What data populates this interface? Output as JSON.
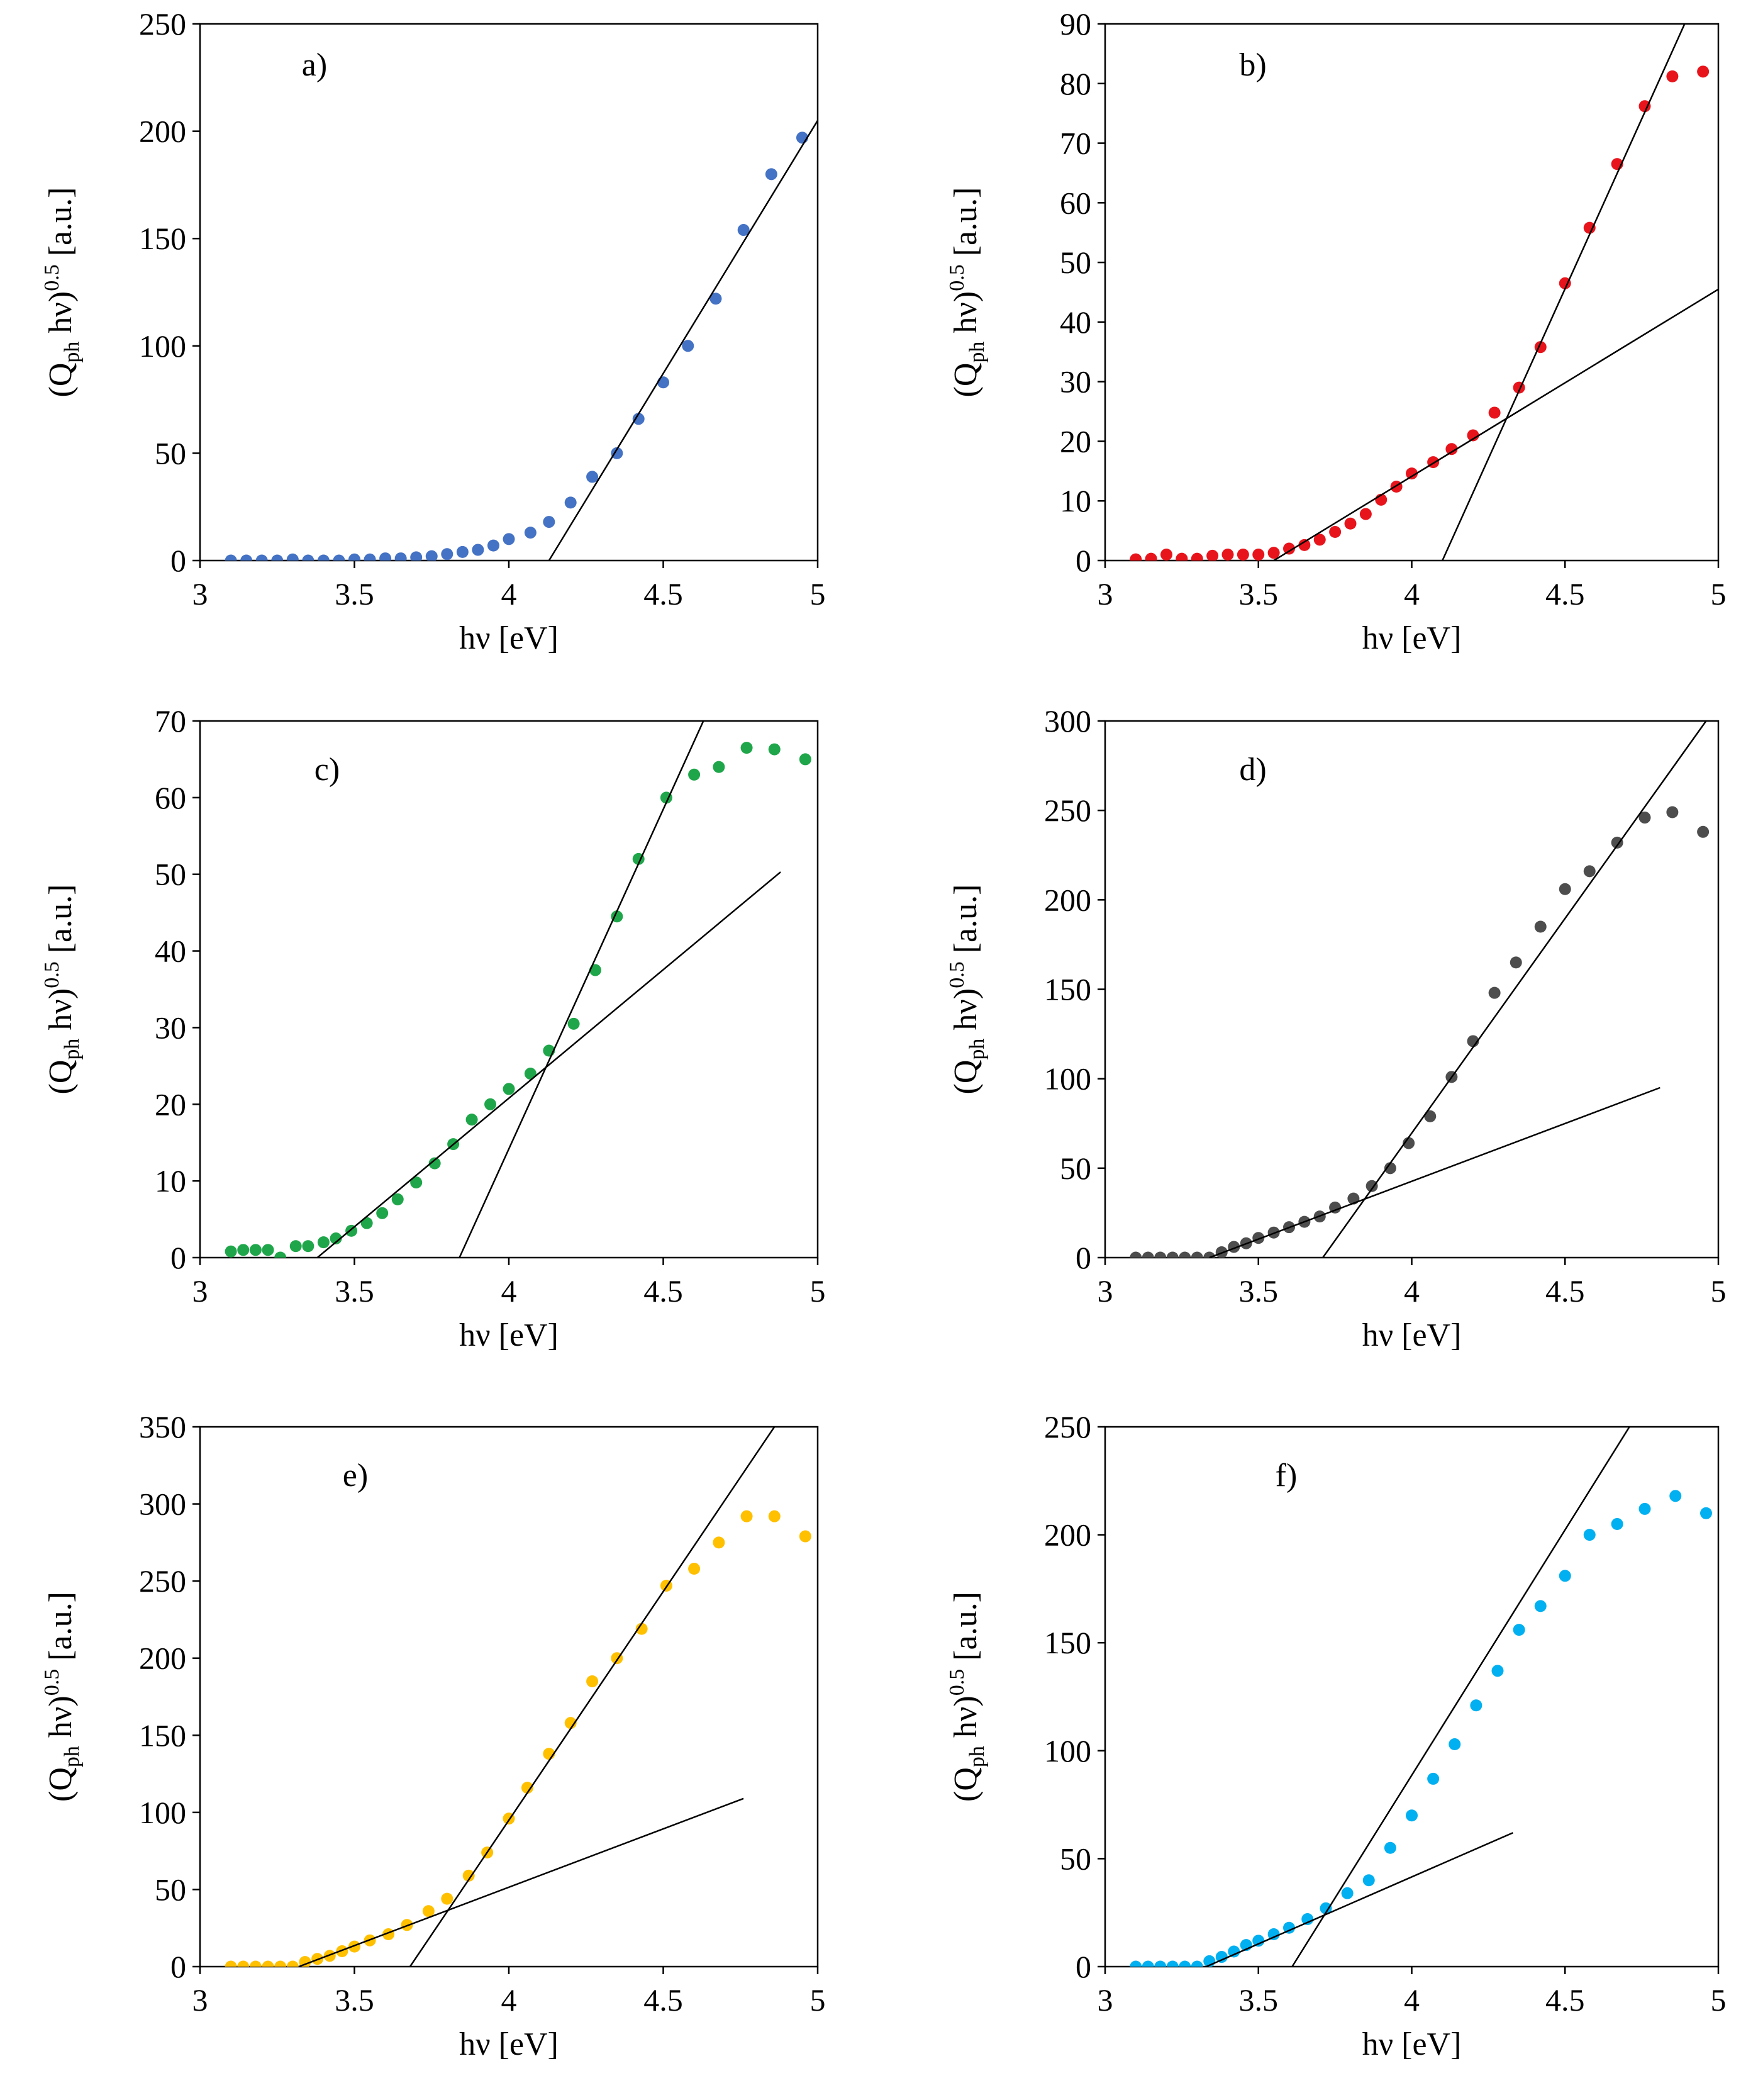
{
  "chart_data": [
    {
      "type": "scatter",
      "panel_label": "a)",
      "color": "#4472C4",
      "xlabel": "hν [eV]",
      "ylabel": "(Qph hν)0.5 [a.u.]",
      "ylabel_parts": {
        "pre": "(Q",
        "sub": "ph",
        "mid": " hν)",
        "sup": "0.5",
        "post": " [a.u.]"
      },
      "xlim": [
        3,
        5
      ],
      "ylim": [
        0,
        250
      ],
      "xticks": [
        "3",
        "3.5",
        "4",
        "4.5",
        "5"
      ],
      "yticks": [
        "0",
        "50",
        "100",
        "150",
        "200",
        "250"
      ],
      "x": [
        3.1,
        3.15,
        3.2,
        3.25,
        3.3,
        3.35,
        3.4,
        3.45,
        3.5,
        3.55,
        3.6,
        3.65,
        3.7,
        3.75,
        3.8,
        3.85,
        3.9,
        3.95,
        4.0,
        4.07,
        4.13,
        4.2,
        4.27,
        4.35,
        4.42,
        4.5,
        4.58,
        4.67,
        4.76,
        4.85,
        4.95
      ],
      "y": [
        0,
        0,
        0,
        0,
        0.5,
        0,
        0,
        0,
        0.5,
        0.5,
        1,
        1,
        1.5,
        2,
        3,
        4,
        5,
        7,
        10,
        13,
        18,
        27,
        39,
        50,
        66,
        83,
        100,
        122,
        154,
        180,
        197
      ],
      "fit_lines": [
        {
          "x": [
            4.13,
            5.0
          ],
          "y": [
            0,
            205
          ]
        }
      ]
    },
    {
      "type": "scatter",
      "panel_label": "b)",
      "color": "#E8141C",
      "xlabel": "hν [eV]",
      "ylabel": "(Qph hν)0.5 [a.u.]",
      "ylabel_parts": {
        "pre": "(Q",
        "sub": "ph",
        "mid": " hν)",
        "sup": "0.5",
        "post": " [a.u.]"
      },
      "xlim": [
        3,
        5
      ],
      "ylim": [
        0,
        90
      ],
      "xticks": [
        "3",
        "3.5",
        "4",
        "4.5",
        "5"
      ],
      "yticks": [
        "0",
        "10",
        "20",
        "30",
        "40",
        "50",
        "60",
        "70",
        "80",
        "90"
      ],
      "x": [
        3.1,
        3.15,
        3.2,
        3.25,
        3.3,
        3.35,
        3.4,
        3.45,
        3.5,
        3.55,
        3.6,
        3.65,
        3.7,
        3.75,
        3.8,
        3.85,
        3.9,
        3.95,
        4.0,
        4.07,
        4.13,
        4.2,
        4.27,
        4.35,
        4.42,
        4.5,
        4.58,
        4.67,
        4.76,
        4.85,
        4.95
      ],
      "y": [
        0.2,
        0.3,
        1,
        0.3,
        0.3,
        0.8,
        1,
        1,
        1,
        1.3,
        2,
        2.6,
        3.5,
        4.8,
        6.2,
        7.8,
        10.2,
        12.4,
        14.6,
        16.5,
        18.7,
        21,
        24.8,
        29,
        35.8,
        46.5,
        55.8,
        66.5,
        76.2,
        81.2,
        82
      ],
      "fit_lines": [
        {
          "x": [
            3.55,
            5.0
          ],
          "y": [
            0,
            45.5
          ]
        },
        {
          "x": [
            4.1,
            4.89
          ],
          "y": [
            0,
            90
          ]
        }
      ]
    },
    {
      "type": "scatter",
      "panel_label": "c)",
      "color": "#1FA64A",
      "xlabel": "hν [eV]",
      "ylabel": "(Qph hν)0.5 [a.u.]",
      "ylabel_parts": {
        "pre": "(Q",
        "sub": "ph",
        "mid": " hν)",
        "sup": "0.5",
        "post": " [a.u.]"
      },
      "xlim": [
        3,
        5
      ],
      "ylim": [
        0,
        70
      ],
      "xticks": [
        "3",
        "3.5",
        "4",
        "4.5",
        "5"
      ],
      "yticks": [
        "0",
        "10",
        "20",
        "30",
        "40",
        "50",
        "60",
        "70"
      ],
      "x": [
        3.1,
        3.14,
        3.18,
        3.22,
        3.26,
        3.31,
        3.35,
        3.4,
        3.44,
        3.49,
        3.54,
        3.59,
        3.64,
        3.7,
        3.76,
        3.82,
        3.88,
        3.94,
        4.0,
        4.07,
        4.13,
        4.21,
        4.28,
        4.35,
        4.42,
        4.51,
        4.6,
        4.68,
        4.77,
        4.86,
        4.96
      ],
      "y": [
        0.8,
        1,
        1,
        1,
        0,
        1.5,
        1.5,
        2,
        2.5,
        3.5,
        4.5,
        5.8,
        7.6,
        9.8,
        12.3,
        14.8,
        18,
        20,
        22,
        24,
        27,
        30.5,
        37.5,
        44.5,
        52,
        60,
        63,
        64,
        66.5,
        66.3,
        65
      ],
      "fit_lines": [
        {
          "x": [
            3.38,
            4.88
          ],
          "y": [
            0,
            50.3
          ]
        },
        {
          "x": [
            3.84,
            4.63
          ],
          "y": [
            0,
            70
          ]
        }
      ]
    },
    {
      "type": "scatter",
      "panel_label": "d)",
      "color": "#4D4D4D",
      "xlabel": "hν [eV]",
      "ylabel": "(Qph hν)0.5 [a.u.]",
      "ylabel_parts": {
        "pre": "(Q",
        "sub": "ph",
        "mid": " hν)",
        "sup": "0.5",
        "post": " [a.u.]"
      },
      "xlim": [
        3,
        5
      ],
      "ylim": [
        0,
        300
      ],
      "xticks": [
        "3",
        "3.5",
        "4",
        "4.5",
        "5"
      ],
      "yticks": [
        "0",
        "50",
        "100",
        "150",
        "200",
        "250",
        "300"
      ],
      "x": [
        3.1,
        3.14,
        3.18,
        3.22,
        3.26,
        3.3,
        3.34,
        3.38,
        3.42,
        3.46,
        3.5,
        3.55,
        3.6,
        3.65,
        3.7,
        3.75,
        3.81,
        3.87,
        3.93,
        3.99,
        4.06,
        4.13,
        4.2,
        4.27,
        4.34,
        4.42,
        4.5,
        4.58,
        4.67,
        4.76,
        4.85,
        4.95
      ],
      "y": [
        0,
        0,
        0,
        0,
        0,
        0,
        0,
        3,
        6,
        8,
        11,
        14,
        17,
        20,
        23,
        28,
        33,
        40,
        50,
        64,
        79,
        101,
        121,
        148,
        165,
        185,
        206,
        216,
        232,
        246,
        249,
        238
      ],
      "fit_lines": [
        {
          "x": [
            3.34,
            4.81
          ],
          "y": [
            0,
            95
          ]
        },
        {
          "x": [
            3.71,
            4.96
          ],
          "y": [
            0,
            300
          ]
        }
      ]
    },
    {
      "type": "scatter",
      "panel_label": "e)",
      "color": "#FFC000",
      "xlabel": "hν [eV]",
      "ylabel": "(Qph hν)0.5 [a.u.]",
      "ylabel_parts": {
        "pre": "(Q",
        "sub": "ph",
        "mid": " hν)",
        "sup": "0.5",
        "post": " [a.u.]"
      },
      "xlim": [
        3,
        5
      ],
      "ylim": [
        0,
        350
      ],
      "xticks": [
        "3",
        "3.5",
        "4",
        "4.5",
        "5"
      ],
      "yticks": [
        "0",
        "50",
        "100",
        "150",
        "200",
        "250",
        "300",
        "350"
      ],
      "x": [
        3.1,
        3.14,
        3.18,
        3.22,
        3.26,
        3.3,
        3.34,
        3.38,
        3.42,
        3.46,
        3.5,
        3.55,
        3.61,
        3.67,
        3.74,
        3.8,
        3.87,
        3.93,
        4.0,
        4.06,
        4.13,
        4.2,
        4.27,
        4.35,
        4.43,
        4.51,
        4.6,
        4.68,
        4.77,
        4.86,
        4.96
      ],
      "y": [
        0,
        0,
        0,
        0,
        0,
        0,
        3,
        5,
        7,
        10,
        13,
        17,
        21,
        27,
        36,
        44,
        59,
        74,
        96,
        116,
        138,
        158,
        185,
        200,
        219,
        247,
        258,
        275,
        292,
        292,
        279
      ],
      "fit_lines": [
        {
          "x": [
            3.32,
            4.76
          ],
          "y": [
            0,
            109
          ]
        },
        {
          "x": [
            3.68,
            4.86
          ],
          "y": [
            0,
            350
          ]
        }
      ]
    },
    {
      "type": "scatter",
      "panel_label": "f)",
      "color": "#00B0F0",
      "xlabel": "hν [eV]",
      "ylabel": "(Qph hν)0.5 [a.u.]",
      "ylabel_parts": {
        "pre": "(Q",
        "sub": "ph",
        "mid": " hν)",
        "sup": "0.5",
        "post": " [a.u.]"
      },
      "xlim": [
        3,
        5
      ],
      "ylim": [
        0,
        250
      ],
      "xticks": [
        "3",
        "3.5",
        "4",
        "4.5",
        "5"
      ],
      "yticks": [
        "0",
        "50",
        "100",
        "150",
        "200",
        "250"
      ],
      "x": [
        3.1,
        3.14,
        3.18,
        3.22,
        3.26,
        3.3,
        3.34,
        3.38,
        3.42,
        3.46,
        3.5,
        3.55,
        3.6,
        3.66,
        3.72,
        3.79,
        3.86,
        3.93,
        4.0,
        4.07,
        4.14,
        4.21,
        4.28,
        4.35,
        4.42,
        4.5,
        4.58,
        4.67,
        4.76,
        4.86,
        4.96
      ],
      "y": [
        0,
        0,
        0,
        0,
        0,
        0,
        2.5,
        4.5,
        7,
        10,
        12,
        15,
        18,
        22,
        27,
        34,
        40,
        55,
        70,
        87,
        103,
        121,
        137,
        156,
        167,
        181,
        200,
        205,
        212,
        218,
        210
      ],
      "fit_lines": [
        {
          "x": [
            3.33,
            4.33
          ],
          "y": [
            0,
            62
          ]
        },
        {
          "x": [
            3.61,
            4.71
          ],
          "y": [
            0,
            250
          ]
        }
      ]
    }
  ]
}
